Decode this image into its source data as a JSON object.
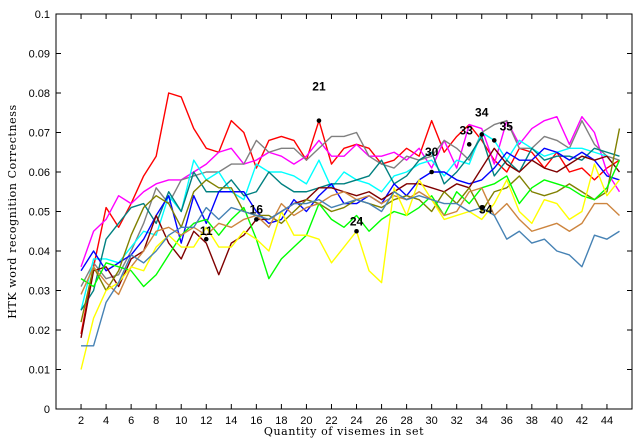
{
  "chart_data": {
    "type": "line",
    "xlabel": "Quantity of visemes in set",
    "ylabel": "HTK word recognition Correctness",
    "xlim": [
      0,
      46
    ],
    "ylim": [
      0,
      0.1
    ],
    "xticks": [
      2,
      4,
      6,
      8,
      10,
      12,
      14,
      16,
      18,
      20,
      22,
      24,
      26,
      28,
      30,
      32,
      34,
      36,
      38,
      40,
      42,
      44
    ],
    "yticks": [
      0,
      0.01,
      0.02,
      0.03,
      0.04,
      0.05,
      0.06,
      0.07,
      0.08,
      0.09,
      0.1
    ],
    "ytick_labels": [
      "0",
      "0.01",
      "0.02",
      "0.03",
      "0.04",
      "0.05",
      "0.06",
      "0.07",
      "0.08",
      "0.09",
      "0.1"
    ],
    "grid": false,
    "x": [
      2,
      3,
      4,
      5,
      6,
      7,
      8,
      9,
      10,
      11,
      12,
      13,
      14,
      15,
      16,
      17,
      18,
      19,
      20,
      21,
      22,
      23,
      24,
      25,
      26,
      27,
      28,
      29,
      30,
      31,
      32,
      33,
      34,
      35,
      36,
      37,
      38,
      39,
      40,
      41,
      42,
      43,
      44,
      45
    ],
    "series": [
      {
        "color": "#ff0000",
        "values": [
          0.019,
          0.036,
          0.051,
          0.046,
          0.052,
          0.059,
          0.064,
          0.08,
          0.079,
          0.071,
          0.066,
          0.065,
          0.073,
          0.07,
          0.061,
          0.068,
          0.069,
          0.068,
          0.063,
          0.073,
          0.062,
          0.066,
          0.067,
          0.066,
          0.062,
          0.063,
          0.066,
          0.064,
          0.073,
          0.065,
          0.069,
          0.072,
          0.068,
          0.063,
          0.06,
          0.066,
          0.065,
          0.061,
          0.065,
          0.06,
          0.061,
          0.058,
          0.061,
          0.063
        ]
      },
      {
        "color": "#ff00ff",
        "values": [
          0.036,
          0.045,
          0.048,
          0.054,
          0.052,
          0.055,
          0.057,
          0.058,
          0.058,
          0.06,
          0.062,
          0.065,
          0.066,
          0.062,
          0.063,
          0.065,
          0.064,
          0.062,
          0.064,
          0.068,
          0.064,
          0.064,
          0.067,
          0.064,
          0.064,
          0.065,
          0.063,
          0.066,
          0.061,
          0.068,
          0.061,
          0.072,
          0.071,
          0.062,
          0.073,
          0.067,
          0.071,
          0.073,
          0.074,
          0.067,
          0.074,
          0.07,
          0.06,
          0.055
        ]
      },
      {
        "color": "#808080",
        "values": [
          0.031,
          0.037,
          0.033,
          0.034,
          0.04,
          0.047,
          0.056,
          0.052,
          0.058,
          0.059,
          0.06,
          0.06,
          0.062,
          0.062,
          0.068,
          0.065,
          0.066,
          0.066,
          0.063,
          0.066,
          0.069,
          0.069,
          0.07,
          0.064,
          0.062,
          0.061,
          0.064,
          0.063,
          0.064,
          0.068,
          0.066,
          0.063,
          0.07,
          0.072,
          0.073,
          0.066,
          0.066,
          0.069,
          0.068,
          0.066,
          0.073,
          0.067,
          0.064,
          0.063
        ]
      },
      {
        "color": "#00ffff",
        "values": [
          0.025,
          0.038,
          0.038,
          0.037,
          0.041,
          0.045,
          0.044,
          0.054,
          0.05,
          0.063,
          0.058,
          0.06,
          0.055,
          0.053,
          0.062,
          0.06,
          0.06,
          0.059,
          0.057,
          0.063,
          0.056,
          0.06,
          0.058,
          0.057,
          0.055,
          0.059,
          0.06,
          0.062,
          0.063,
          0.059,
          0.063,
          0.062,
          0.07,
          0.068,
          0.063,
          0.068,
          0.066,
          0.064,
          0.065,
          0.066,
          0.066,
          0.065,
          0.064,
          0.06
        ]
      },
      {
        "color": "#008080",
        "values": [
          0.025,
          0.03,
          0.043,
          0.047,
          0.051,
          0.052,
          0.047,
          0.055,
          0.05,
          0.06,
          0.055,
          0.055,
          0.058,
          0.054,
          0.055,
          0.06,
          0.057,
          0.055,
          0.055,
          0.056,
          0.057,
          0.057,
          0.058,
          0.059,
          0.063,
          0.057,
          0.059,
          0.063,
          0.065,
          0.057,
          0.06,
          0.064,
          0.069,
          0.059,
          0.063,
          0.06,
          0.066,
          0.063,
          0.064,
          0.064,
          0.063,
          0.066,
          0.065,
          0.064
        ]
      },
      {
        "color": "#0000ff",
        "values": [
          0.035,
          0.04,
          0.035,
          0.037,
          0.039,
          0.043,
          0.049,
          0.054,
          0.042,
          0.054,
          0.047,
          0.055,
          0.055,
          0.055,
          0.05,
          0.047,
          0.048,
          0.053,
          0.05,
          0.054,
          0.057,
          0.052,
          0.052,
          0.054,
          0.052,
          0.057,
          0.054,
          0.058,
          0.06,
          0.06,
          0.058,
          0.057,
          0.058,
          0.061,
          0.065,
          0.063,
          0.063,
          0.066,
          0.065,
          0.063,
          0.065,
          0.063,
          0.059,
          0.058
        ]
      },
      {
        "color": "#7f0000",
        "values": [
          0.018,
          0.035,
          0.036,
          0.031,
          0.038,
          0.04,
          0.049,
          0.042,
          0.038,
          0.045,
          0.042,
          0.034,
          0.042,
          0.044,
          0.048,
          0.048,
          0.05,
          0.052,
          0.053,
          0.056,
          0.056,
          0.055,
          0.054,
          0.055,
          0.053,
          0.055,
          0.057,
          0.057,
          0.056,
          0.055,
          0.057,
          0.056,
          0.061,
          0.066,
          0.062,
          0.06,
          0.063,
          0.061,
          0.06,
          0.062,
          0.064,
          0.063,
          0.064,
          0.06
        ]
      },
      {
        "color": "#808000",
        "values": [
          0.022,
          0.036,
          0.03,
          0.035,
          0.044,
          0.051,
          0.054,
          0.052,
          0.046,
          0.055,
          0.058,
          0.056,
          0.056,
          0.05,
          0.049,
          0.049,
          0.047,
          0.05,
          0.053,
          0.052,
          0.05,
          0.051,
          0.053,
          0.052,
          0.051,
          0.053,
          0.054,
          0.053,
          0.05,
          0.055,
          0.052,
          0.056,
          0.05,
          0.055,
          0.056,
          0.059,
          0.055,
          0.054,
          0.055,
          0.057,
          0.055,
          0.053,
          0.055,
          0.071
        ]
      },
      {
        "color": "#00ff00",
        "values": [
          0.033,
          0.031,
          0.037,
          0.036,
          0.035,
          0.031,
          0.034,
          0.039,
          0.044,
          0.047,
          0.048,
          0.044,
          0.048,
          0.051,
          0.043,
          0.033,
          0.038,
          0.041,
          0.044,
          0.052,
          0.048,
          0.046,
          0.049,
          0.045,
          0.048,
          0.05,
          0.049,
          0.051,
          0.054,
          0.049,
          0.055,
          0.052,
          0.056,
          0.057,
          0.059,
          0.052,
          0.056,
          0.058,
          0.057,
          0.056,
          0.054,
          0.053,
          0.056,
          0.063
        ]
      },
      {
        "color": "#cd853f",
        "values": [
          0.029,
          0.036,
          0.032,
          0.029,
          0.036,
          0.04,
          0.045,
          0.046,
          0.044,
          0.046,
          0.044,
          0.047,
          0.046,
          0.048,
          0.049,
          0.046,
          0.052,
          0.049,
          0.051,
          0.052,
          0.054,
          0.055,
          0.053,
          0.054,
          0.052,
          0.054,
          0.053,
          0.055,
          0.053,
          0.049,
          0.05,
          0.055,
          0.056,
          0.049,
          0.052,
          0.048,
          0.045,
          0.046,
          0.047,
          0.045,
          0.047,
          0.052,
          0.052,
          0.049
        ]
      },
      {
        "color": "#ffff00",
        "values": [
          0.01,
          0.023,
          0.03,
          0.032,
          0.036,
          0.035,
          0.041,
          0.044,
          0.041,
          0.041,
          0.046,
          0.041,
          0.041,
          0.045,
          0.043,
          0.04,
          0.05,
          0.044,
          0.044,
          0.043,
          0.037,
          0.041,
          0.045,
          0.035,
          0.032,
          0.056,
          0.049,
          0.058,
          0.053,
          0.048,
          0.049,
          0.05,
          0.048,
          0.052,
          0.058,
          0.05,
          0.047,
          0.053,
          0.052,
          0.048,
          0.05,
          0.062,
          0.054,
          0.058
        ]
      },
      {
        "color": "#4682b4",
        "values": [
          0.016,
          0.016,
          0.027,
          0.032,
          0.039,
          0.037,
          0.04,
          0.044,
          0.046,
          0.046,
          0.051,
          0.048,
          0.051,
          0.05,
          0.049,
          0.048,
          0.05,
          0.052,
          0.052,
          0.053,
          0.051,
          0.052,
          0.053,
          0.052,
          0.05,
          0.055,
          0.053,
          0.054,
          0.053,
          0.052,
          0.052,
          0.05,
          0.051,
          0.049,
          0.043,
          0.045,
          0.042,
          0.043,
          0.04,
          0.039,
          0.036,
          0.044,
          0.043,
          0.045
        ]
      }
    ],
    "annotations": [
      {
        "label": "11",
        "x": 12,
        "y": 0.043,
        "dot": true
      },
      {
        "label": "16",
        "x": 16,
        "y": 0.048,
        "dot": true
      },
      {
        "label": "21",
        "x": 21,
        "y": 0.073,
        "dot": true
      },
      {
        "label": "24",
        "x": 24,
        "y": 0.045,
        "dot": true
      },
      {
        "label": "30",
        "x": 30,
        "y": 0.06,
        "dot": true
      },
      {
        "label": "33",
        "x": 33,
        "y": 0.067,
        "dot": true
      },
      {
        "label": "34",
        "x": 34,
        "y": 0.0695,
        "dot": true
      },
      {
        "label": "35",
        "x": 35,
        "y": 0.068,
        "dot": true
      },
      {
        "label": "34",
        "x": 34,
        "y": 0.051,
        "dot": true
      }
    ]
  }
}
